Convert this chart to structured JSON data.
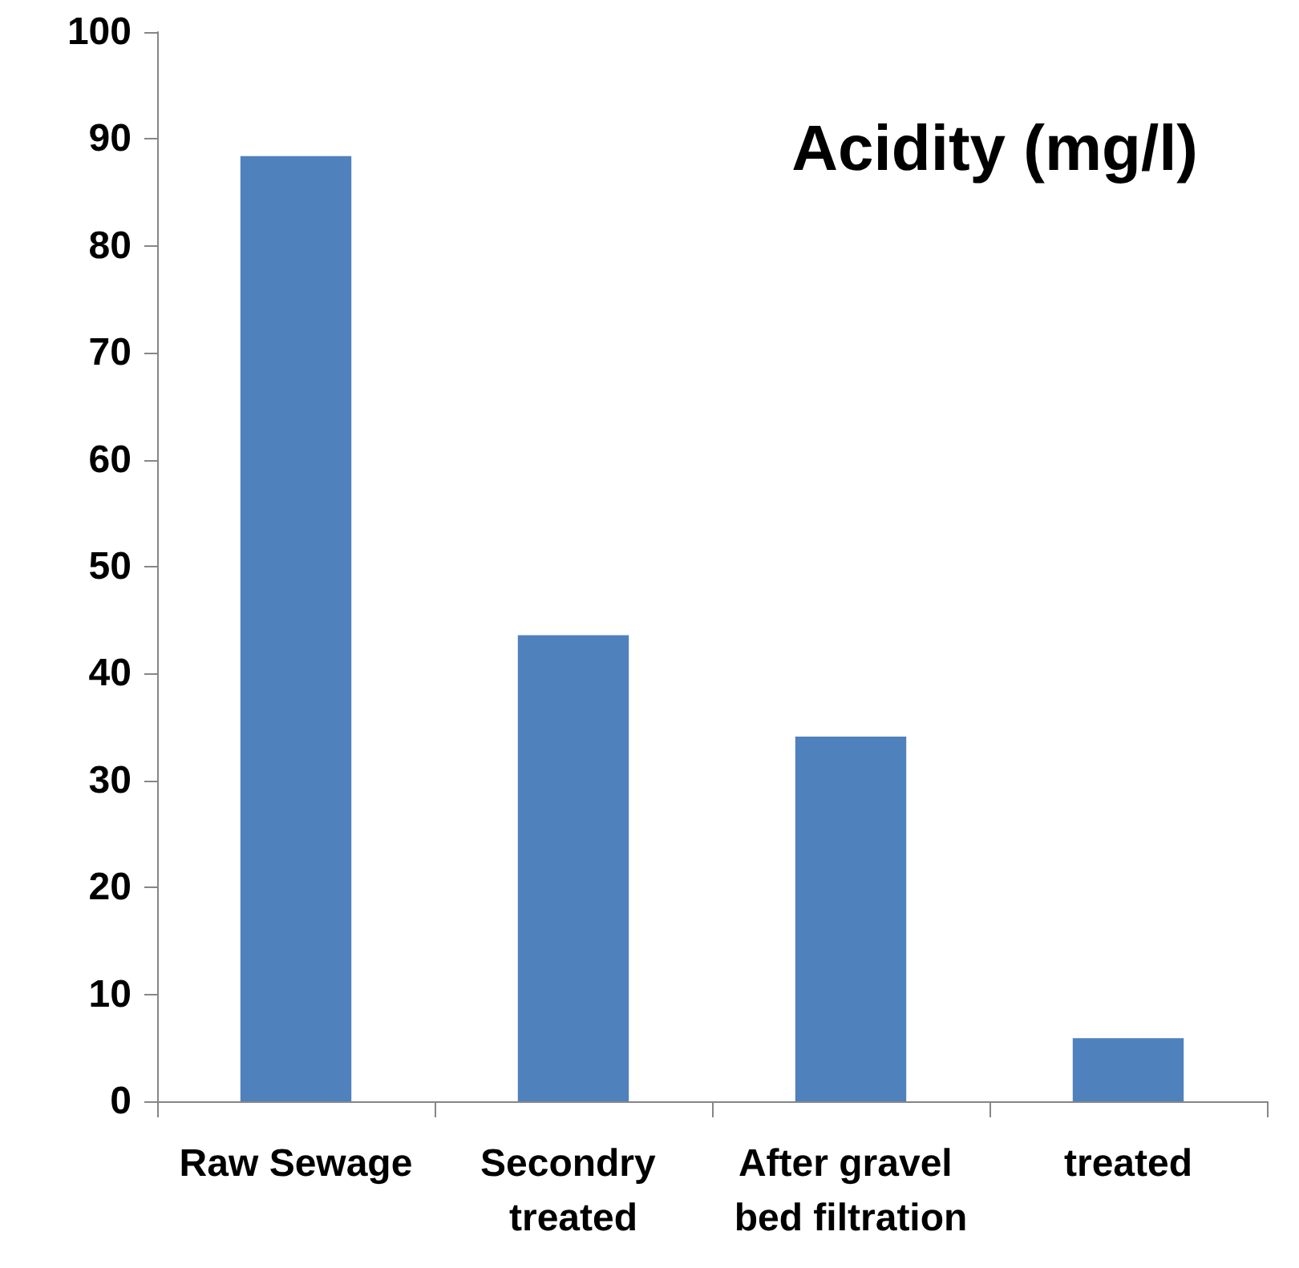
{
  "chart_data": {
    "type": "bar",
    "title": "Acidity (mg/l)",
    "categories": [
      "Raw Sewage",
      "Secondry treated",
      "After gravel bed filtration",
      "treated"
    ],
    "values": [
      88.4,
      43.6,
      34.1,
      5.9
    ],
    "color": "#4f81bd",
    "ylim": [
      0,
      100
    ],
    "yticks": [
      0,
      10,
      20,
      30,
      40,
      50,
      60,
      70,
      80,
      90,
      100
    ],
    "grid": false
  }
}
